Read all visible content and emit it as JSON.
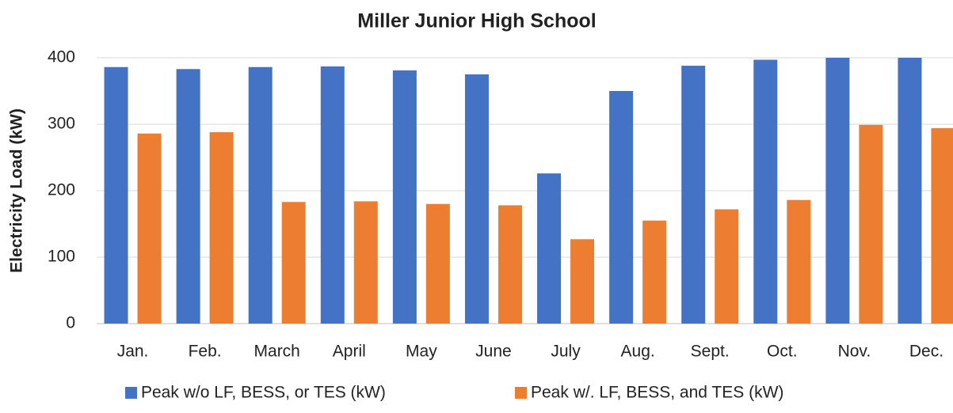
{
  "chart_data": {
    "type": "bar",
    "title": "Miller Junior High School",
    "y_label": "Electricity Load (kW)",
    "categories": [
      "Jan.",
      "Feb.",
      "March",
      "April",
      "May",
      "June",
      "July",
      "Aug.",
      "Sept.",
      "Oct.",
      "Nov.",
      "Dec."
    ],
    "series": [
      {
        "name": "Peak w/o LF, BESS, or TES (kW)",
        "color": "#4472c4",
        "values": [
          386,
          383,
          386,
          387,
          381,
          375,
          226,
          350,
          388,
          397,
          400,
          400
        ]
      },
      {
        "name": "Peak w/. LF, BESS, and TES (kW)",
        "color": "#ed7d31",
        "values": [
          286,
          288,
          183,
          184,
          180,
          178,
          127,
          155,
          172,
          186,
          299,
          294
        ]
      }
    ],
    "ylim": [
      0,
      400
    ],
    "yticks": [
      0,
      100,
      200,
      300,
      400
    ],
    "grid": true,
    "legend": "bottom"
  }
}
